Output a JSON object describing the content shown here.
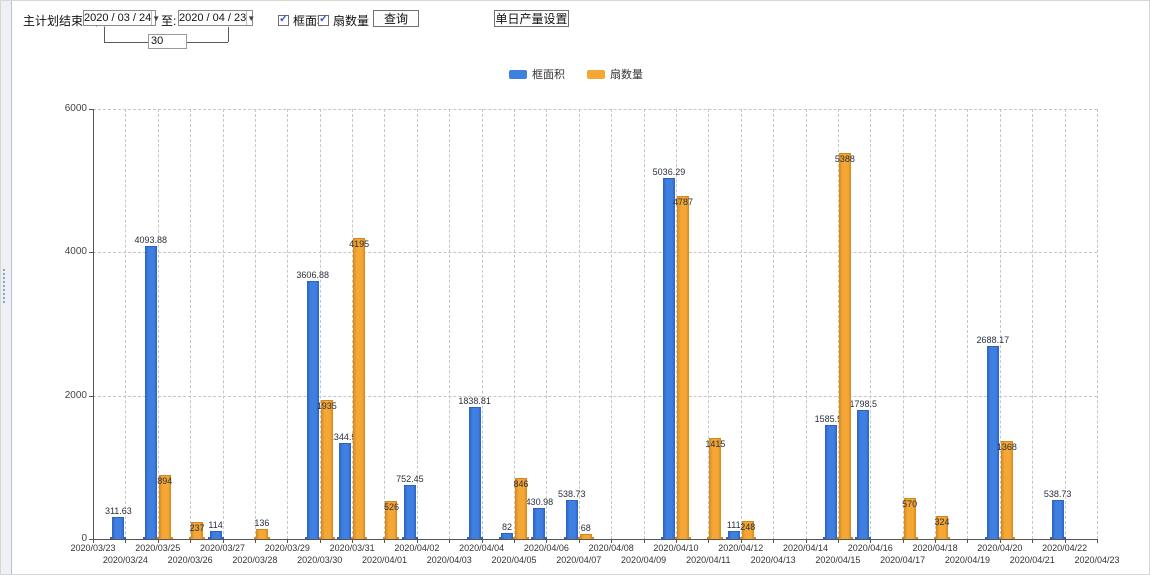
{
  "toolbar": {
    "end_time_label": "主计划结束时间:",
    "date_from": "2020 / 03 / 24",
    "to_label": "至:",
    "date_to": "2020 / 04 / 23",
    "interval_days": "30",
    "checkbox_frame_area": "框面积",
    "checkbox_fan_count": "扇数量",
    "query_button": "查询",
    "daily_output_button": "单日产量设置",
    "dropdown_glyph": "▼",
    "check_glyph": "✓"
  },
  "legend": [
    {
      "label": "框面积",
      "color": "#3f7fe0"
    },
    {
      "label": "扇数量",
      "color": "#f5a736"
    }
  ],
  "chart_data": {
    "type": "bar",
    "title": "",
    "xlabel": "",
    "ylabel": "",
    "ylim": [
      0,
      6000
    ],
    "yticks": [
      0,
      2000,
      4000,
      6000
    ],
    "grid": "dashed",
    "legend_position": "top",
    "categories": [
      "2020/03/23",
      "2020/03/24",
      "2020/03/25",
      "2020/03/26",
      "2020/03/27",
      "2020/03/28",
      "2020/03/29",
      "2020/03/30",
      "2020/03/31",
      "2020/04/01",
      "2020/04/02",
      "2020/04/03",
      "2020/04/04",
      "2020/04/05",
      "2020/04/06",
      "2020/04/07",
      "2020/04/08",
      "2020/04/09",
      "2020/04/10",
      "2020/04/11",
      "2020/04/12",
      "2020/04/13",
      "2020/04/14",
      "2020/04/15",
      "2020/04/16",
      "2020/04/17",
      "2020/04/18",
      "2020/04/19",
      "2020/04/20",
      "2020/04/21",
      "2020/04/22",
      "2020/04/23"
    ],
    "series": [
      {
        "name": "框面积",
        "color": "#3f7fe0",
        "edge": "#2c62c4",
        "values": [
          null,
          311.63,
          4093.88,
          null,
          114,
          null,
          null,
          3606.88,
          1344.95,
          null,
          752.45,
          null,
          1838.81,
          82,
          430.98,
          538.73,
          null,
          null,
          5036.29,
          null,
          111,
          null,
          null,
          1585.96,
          1798.5,
          null,
          null,
          null,
          2688.17,
          null,
          538.73,
          null
        ]
      },
      {
        "name": "扇数量",
        "color": "#f5a736",
        "edge": "#d4881c",
        "values": [
          null,
          null,
          894,
          237,
          null,
          136,
          null,
          1935,
          4195,
          526,
          null,
          null,
          null,
          846,
          null,
          68,
          null,
          null,
          4787,
          1415,
          248,
          null,
          null,
          5388,
          null,
          570,
          324,
          null,
          1368,
          null,
          null,
          null
        ]
      }
    ]
  }
}
